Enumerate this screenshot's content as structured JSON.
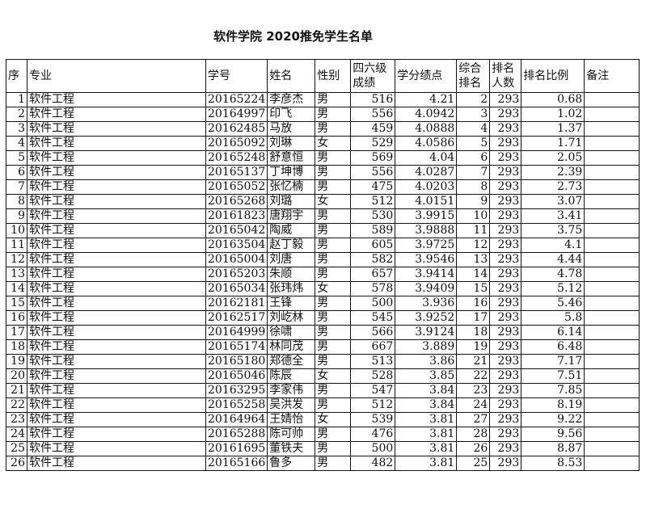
{
  "title": "软件学院 2020推免学生名单",
  "headers": [
    "序",
    "专业",
    "学号",
    "姓名",
    "性别",
    "四六级\n成绩",
    "学分绩点",
    "综合\n排名",
    "排名\n人数",
    "排名比例",
    "备注"
  ],
  "rows": [
    [
      "1",
      "软件工程",
      "20165224",
      "李彦杰",
      "男",
      "516",
      "4.21",
      "2",
      "293",
      "0.68",
      ""
    ],
    [
      "2",
      "软件工程",
      "20164997",
      "印飞",
      "男",
      "556",
      "4.0942",
      "3",
      "293",
      "1.02",
      ""
    ],
    [
      "3",
      "软件工程",
      "20162485",
      "马放",
      "男",
      "459",
      "4.0888",
      "4",
      "293",
      "1.37",
      ""
    ],
    [
      "4",
      "软件工程",
      "20165092",
      "刘琳",
      "女",
      "529",
      "4.0586",
      "5",
      "293",
      "1.71",
      ""
    ],
    [
      "5",
      "软件工程",
      "20165248",
      "舒意恒",
      "男",
      "569",
      "4.04",
      "6",
      "293",
      "2.05",
      ""
    ],
    [
      "6",
      "软件工程",
      "20165137",
      "丁坤博",
      "男",
      "556",
      "4.0287",
      "7",
      "293",
      "2.39",
      ""
    ],
    [
      "7",
      "软件工程",
      "20165052",
      "张忆楠",
      "男",
      "475",
      "4.0203",
      "8",
      "293",
      "2.73",
      ""
    ],
    [
      "8",
      "软件工程",
      "20165268",
      "刘璐",
      "女",
      "512",
      "4.0151",
      "9",
      "293",
      "3.07",
      ""
    ],
    [
      "9",
      "软件工程",
      "20161823",
      "唐翔宇",
      "男",
      "530",
      "3.9915",
      "10",
      "293",
      "3.41",
      ""
    ],
    [
      "10",
      "软件工程",
      "20165042",
      "陶威",
      "男",
      "589",
      "3.9888",
      "11",
      "293",
      "3.75",
      ""
    ],
    [
      "11",
      "软件工程",
      "20163504",
      "赵丁毅",
      "男",
      "605",
      "3.9725",
      "12",
      "293",
      "4.1",
      ""
    ],
    [
      "12",
      "软件工程",
      "20165004",
      "刘唐",
      "男",
      "582",
      "3.9546",
      "13",
      "293",
      "4.44",
      ""
    ],
    [
      "13",
      "软件工程",
      "20165203",
      "朱顺",
      "男",
      "657",
      "3.9414",
      "14",
      "293",
      "4.78",
      ""
    ],
    [
      "14",
      "软件工程",
      "20165034",
      "张玮炜",
      "女",
      "578",
      "3.9409",
      "15",
      "293",
      "5.12",
      ""
    ],
    [
      "15",
      "软件工程",
      "20162181",
      "王锋",
      "男",
      "500",
      "3.936",
      "16",
      "293",
      "5.46",
      ""
    ],
    [
      "16",
      "软件工程",
      "20162517",
      "刘屹林",
      "男",
      "545",
      "3.9252",
      "17",
      "293",
      "5.8",
      ""
    ],
    [
      "17",
      "软件工程",
      "20164999",
      "徐啸",
      "男",
      "566",
      "3.9124",
      "18",
      "293",
      "6.14",
      ""
    ],
    [
      "18",
      "软件工程",
      "20165174",
      "林同茂",
      "男",
      "667",
      "3.889",
      "19",
      "293",
      "6.48",
      ""
    ],
    [
      "19",
      "软件工程",
      "20165180",
      "郑德全",
      "男",
      "513",
      "3.86",
      "21",
      "293",
      "7.17",
      ""
    ],
    [
      "20",
      "软件工程",
      "20165046",
      "陈辰",
      "女",
      "528",
      "3.85",
      "22",
      "293",
      "7.51",
      ""
    ],
    [
      "21",
      "软件工程",
      "20163295",
      "李家伟",
      "男",
      "547",
      "3.84",
      "23",
      "293",
      "7.85",
      ""
    ],
    [
      "22",
      "软件工程",
      "20165258",
      "吴洪发",
      "男",
      "512",
      "3.84",
      "24",
      "293",
      "8.19",
      ""
    ],
    [
      "23",
      "软件工程",
      "20164964",
      "王婧怡",
      "女",
      "539",
      "3.81",
      "27",
      "293",
      "9.22",
      ""
    ],
    [
      "24",
      "软件工程",
      "20165288",
      "陈可帅",
      "男",
      "476",
      "3.81",
      "28",
      "293",
      "9.56",
      ""
    ],
    [
      "25",
      "软件工程",
      "20161695",
      "董铁夫",
      "男",
      "500",
      "3.81",
      "26",
      "293",
      "8.87",
      ""
    ],
    [
      "26",
      "软件工程",
      "20165166",
      "鲁多",
      "男",
      "482",
      "3.81",
      "25",
      "293",
      "8.53",
      ""
    ]
  ]
}
